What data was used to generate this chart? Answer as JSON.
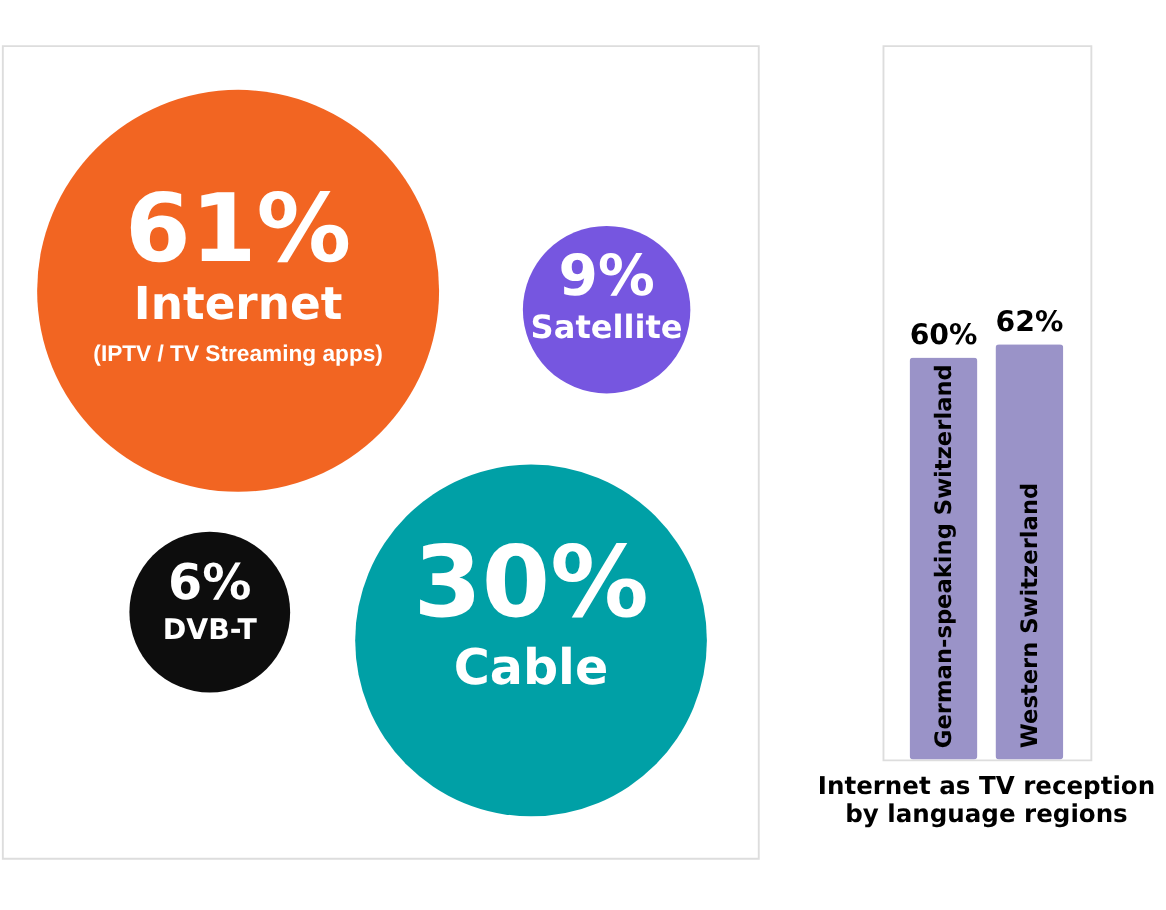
{
  "chart_data": [
    {
      "type": "other",
      "categories": [
        "Internet\n(IPTV / TV Streaming apps)",
        "Satellite",
        "Cable",
        "DVB-T"
      ],
      "values": [
        61,
        9,
        30,
        6
      ],
      "value_labels": [
        "61%",
        "9%",
        "30%",
        "6%"
      ],
      "colors": [
        "#f26522",
        "#7656e0",
        "#00a0a6",
        "#0d0d0d"
      ]
    },
    {
      "type": "bar",
      "title": "Internet as TV reception\nby language regions",
      "categories": [
        "German-speaking Switzerland",
        "Western Switzerland"
      ],
      "values": [
        60,
        62
      ],
      "value_labels": [
        "60%",
        "62%"
      ],
      "color": "#9a93c8"
    }
  ]
}
